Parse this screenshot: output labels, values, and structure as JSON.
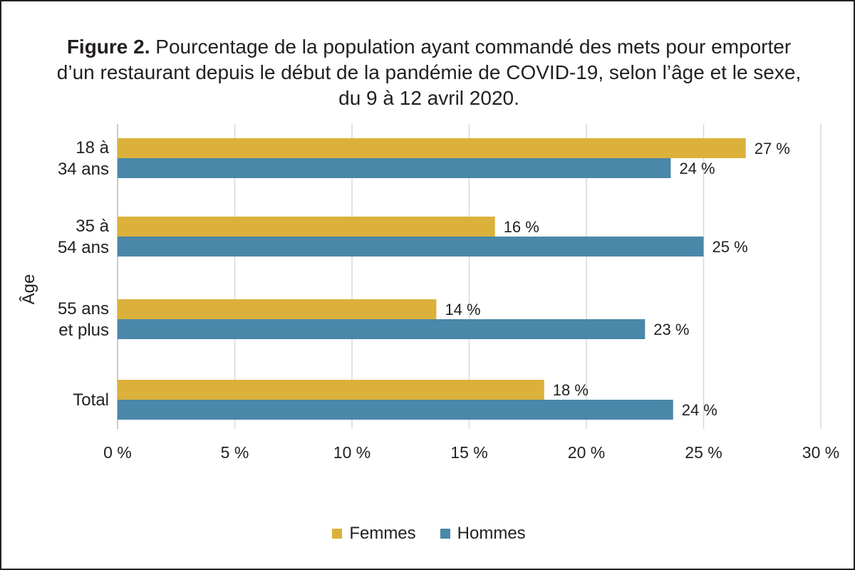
{
  "chart_data": {
    "type": "bar",
    "orientation": "horizontal",
    "title_bold": "Figure 2.",
    "title_line1": "Pourcentage de la population ayant commandé des mets pour emporter",
    "title_line2": "d’un restaurant depuis le début de la pandémie de COVID-19, selon l’âge et le sexe,",
    "title_line3": "du 9 à 12 avril 2020.",
    "ylabel": "Âge",
    "xlabel": "",
    "categories": [
      [
        "18 à",
        "34 ans"
      ],
      [
        "35 à",
        "54 ans"
      ],
      [
        "55 ans",
        "et plus"
      ],
      [
        "Total"
      ]
    ],
    "series": [
      {
        "name": "Femmes",
        "color": "#dbb13b",
        "values": [
          26.8,
          16.1,
          13.6,
          18.2
        ],
        "labels": [
          "27 %",
          "16 %",
          "14 %",
          "18 %"
        ]
      },
      {
        "name": "Hommes",
        "color": "#4a87a8",
        "values": [
          23.6,
          25.0,
          22.5,
          23.7
        ],
        "labels": [
          "24 %",
          "25 %",
          "23 %",
          "24 %"
        ]
      }
    ],
    "xlim": [
      0,
      30
    ],
    "xticks": [
      0,
      5,
      10,
      15,
      20,
      25,
      30
    ],
    "xtick_labels": [
      "0 %",
      "5 %",
      "10 %",
      "15 %",
      "20 %",
      "25 %",
      "30 %"
    ],
    "grid": true,
    "legend_position": "bottom-center"
  }
}
